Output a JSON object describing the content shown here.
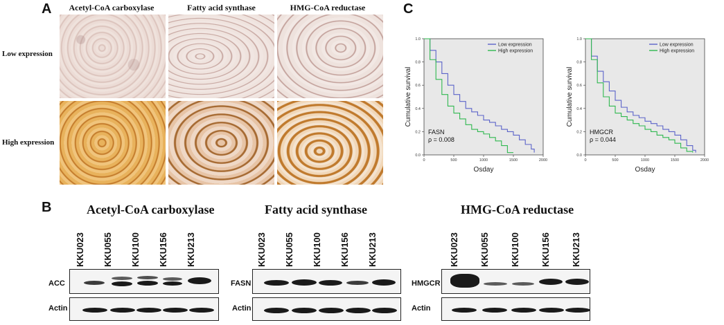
{
  "panels": {
    "a": {
      "letter": "A"
    },
    "b": {
      "letter": "B"
    },
    "c": {
      "letter": "C"
    }
  },
  "ihc": {
    "columns": [
      "Acetyl-CoA carboxylase",
      "Fatty acid synthase",
      "HMG-CoA reductase"
    ],
    "rows": [
      "Low expression",
      "High expression"
    ]
  },
  "blots": {
    "lanes": [
      "KKU023",
      "KKU055",
      "KKU100",
      "KKU156",
      "KKU213"
    ],
    "groups": [
      {
        "title": "Acetyl-CoA carboxylase",
        "target": "ACC",
        "control": "Actin"
      },
      {
        "title": "Fatty acid synthase",
        "target": "FASN",
        "control": "Actin"
      },
      {
        "title": "HMG-CoA reductase",
        "target": "HMGCR",
        "control": "Actin"
      }
    ]
  },
  "colors": {
    "low_expression": "#5b63c9",
    "high_expression": "#2fb84f",
    "plot_bg": "#e8e8e8",
    "ihc_low": "#e9d7d2",
    "ihc_high": "#d69a3e"
  },
  "chart_data": [
    {
      "type": "line",
      "title": "",
      "xlabel": "Osday",
      "ylabel": "Cumulative survival",
      "xlim": [
        0,
        2000
      ],
      "ylim": [
        0,
        1.0
      ],
      "xticks": [
        "0",
        "500",
        "1000",
        "1500",
        "2000"
      ],
      "yticks": [
        "0.0",
        "0.2",
        "0.4",
        "0.6",
        "0.8",
        "1.0"
      ],
      "legend": "top-right",
      "annotation": [
        "FASN",
        "ρ = 0.008"
      ],
      "series": [
        {
          "name": "Low expression",
          "x": [
            0,
            100,
            200,
            300,
            400,
            500,
            600,
            700,
            800,
            900,
            1000,
            1100,
            1200,
            1300,
            1400,
            1500,
            1600,
            1700,
            1800,
            1850
          ],
          "y": [
            1.0,
            0.9,
            0.8,
            0.7,
            0.6,
            0.52,
            0.46,
            0.4,
            0.37,
            0.34,
            0.3,
            0.28,
            0.25,
            0.22,
            0.2,
            0.17,
            0.13,
            0.09,
            0.05,
            0.02
          ]
        },
        {
          "name": "High expression",
          "x": [
            0,
            100,
            200,
            300,
            400,
            500,
            600,
            700,
            800,
            900,
            1000,
            1100,
            1200,
            1300,
            1400,
            1500
          ],
          "y": [
            1.0,
            0.82,
            0.65,
            0.52,
            0.42,
            0.36,
            0.31,
            0.26,
            0.22,
            0.2,
            0.18,
            0.15,
            0.12,
            0.08,
            0.02,
            0.02
          ]
        }
      ]
    },
    {
      "type": "line",
      "title": "",
      "xlabel": "Osday",
      "ylabel": "Cumulative survival",
      "xlim": [
        0,
        2000
      ],
      "ylim": [
        0,
        1.0
      ],
      "xticks": [
        "0",
        "500",
        "1000",
        "1500",
        "2000"
      ],
      "yticks": [
        "0.0",
        "0.2",
        "0.4",
        "0.6",
        "0.8",
        "1.0"
      ],
      "legend": "top-right",
      "annotation": [
        "HMGCR",
        "ρ = 0.044"
      ],
      "series": [
        {
          "name": "Low expression",
          "x": [
            0,
            100,
            200,
            300,
            400,
            500,
            600,
            700,
            800,
            900,
            1000,
            1100,
            1200,
            1300,
            1400,
            1500,
            1600,
            1700,
            1800,
            1850
          ],
          "y": [
            1.0,
            0.85,
            0.72,
            0.63,
            0.55,
            0.47,
            0.41,
            0.37,
            0.34,
            0.32,
            0.29,
            0.27,
            0.25,
            0.22,
            0.2,
            0.17,
            0.13,
            0.08,
            0.04,
            0.02
          ]
        },
        {
          "name": "High expression",
          "x": [
            0,
            100,
            200,
            300,
            400,
            500,
            600,
            700,
            800,
            900,
            1000,
            1100,
            1200,
            1300,
            1400,
            1500,
            1600,
            1700,
            1800
          ],
          "y": [
            1.0,
            0.82,
            0.62,
            0.5,
            0.42,
            0.36,
            0.33,
            0.3,
            0.27,
            0.25,
            0.22,
            0.2,
            0.17,
            0.15,
            0.13,
            0.1,
            0.06,
            0.03,
            0.02
          ]
        }
      ]
    }
  ]
}
